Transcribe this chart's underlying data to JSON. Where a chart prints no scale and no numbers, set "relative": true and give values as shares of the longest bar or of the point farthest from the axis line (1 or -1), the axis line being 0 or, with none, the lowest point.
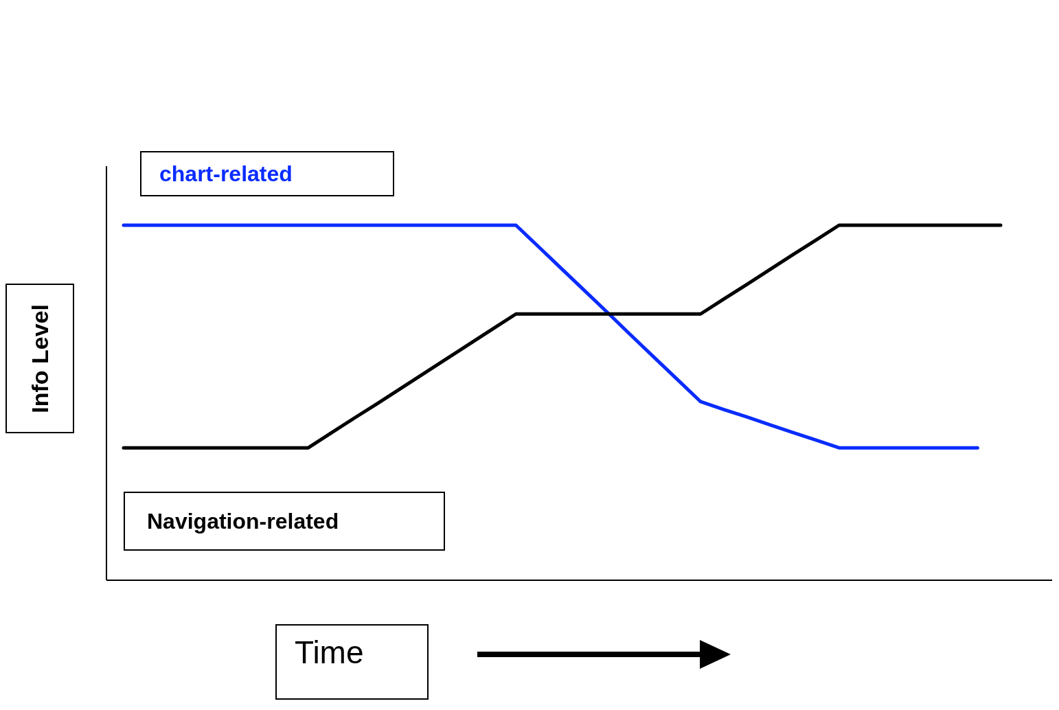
{
  "chart_data": {
    "type": "line",
    "relative": true,
    "xlabel": "Time",
    "ylabel": "Info Level",
    "legend": false,
    "grid": false,
    "marker": "none",
    "line_style": "solid",
    "categories": [
      null,
      null,
      null,
      null,
      null,
      null,
      null,
      null,
      null,
      null,
      null,
      null,
      null,
      null,
      null,
      null,
      null,
      null,
      null,
      null,
      null,
      null,
      null,
      null,
      null,
      null,
      null,
      null,
      null,
      null,
      null,
      null,
      null,
      null,
      null,
      null,
      null,
      null,
      null
    ],
    "series": [
      {
        "name": "chart-related",
        "color": "#0a2cff",
        "values": [
          1,
          1,
          1,
          1,
          1,
          1,
          1,
          1,
          1,
          1,
          1,
          1,
          1,
          1,
          1,
          1,
          1,
          1,
          0.938,
          0.876,
          0.814,
          0.752,
          0.689,
          0.627,
          0.565,
          0.503,
          0.481,
          0.46,
          0.438,
          0.416,
          0.395,
          0.373,
          0.373,
          0.373,
          0.373,
          0.373,
          0.373,
          0.373,
          null
        ]
      },
      {
        "name": "Navigation-related",
        "color": "#000000",
        "values": [
          0.373,
          0.373,
          0.373,
          0.373,
          0.373,
          0.373,
          0.373,
          0.373,
          0.373,
          0.415,
          0.457,
          0.498,
          0.54,
          0.582,
          0.624,
          0.666,
          0.708,
          0.75,
          0.75,
          0.75,
          0.75,
          0.75,
          0.75,
          0.75,
          0.75,
          0.75,
          0.792,
          0.833,
          0.875,
          0.917,
          0.958,
          1,
          1,
          1,
          1,
          1,
          1,
          1,
          1
        ]
      }
    ]
  }
}
